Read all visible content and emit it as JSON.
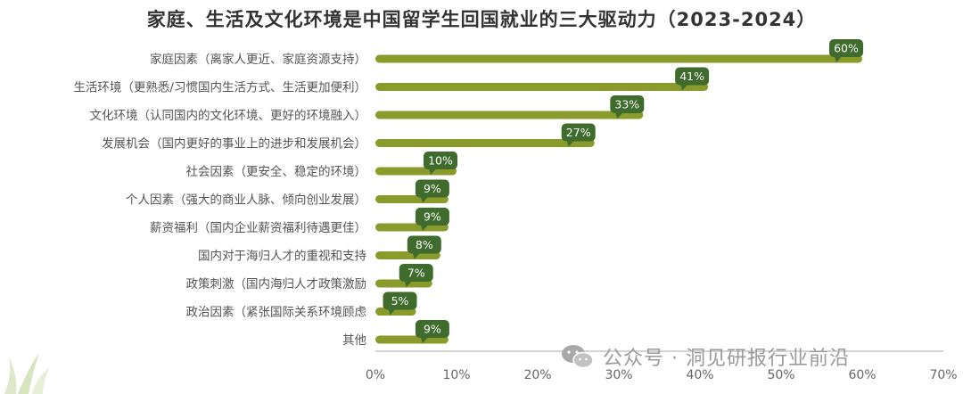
{
  "chart_data": {
    "type": "bar",
    "orientation": "horizontal",
    "title": "家庭、生活及文化环境是中国留学生回国就业的三大驱动力（2023-2024）",
    "categories": [
      "家庭因素（离家人更近、家庭资源支持）",
      "生活环境（更熟悉/习惯国内生活方式、生活更加便利）",
      "文化环境（认同国内的文化环境、更好的环境融入）",
      "发展机会（国内更好的事业上的进步和发展机会）",
      "社会因素（更安全、稳定的环境）",
      "个人因素（强大的商业人脉、倾向创业发展）",
      "薪资福利（国内企业薪资福利待遇更佳）",
      "国内对于海归人才的重视和支持",
      "政策刺激（国内海归人才政策激励",
      "政治因素（紧张国际关系环境顾虑",
      "其他"
    ],
    "values": [
      60,
      41,
      33,
      27,
      10,
      9,
      9,
      8,
      7,
      5,
      9
    ],
    "value_labels": [
      "60%",
      "41%",
      "33%",
      "27%",
      "10%",
      "9%",
      "9%",
      "8%",
      "7%",
      "5%",
      "9%"
    ],
    "xlim": [
      0,
      70
    ],
    "x_ticks": [
      "0%",
      "10%",
      "20%",
      "30%",
      "40%",
      "50%",
      "60%",
      "70%"
    ],
    "grid": false,
    "colors": {
      "bar": "#8a9a2b",
      "label_bg": "#3f6b2d",
      "axis": "#aaaaaa"
    }
  },
  "watermark": {
    "icon": "wechat-icon",
    "text": "公众号 · 洞见研报行业前沿"
  }
}
